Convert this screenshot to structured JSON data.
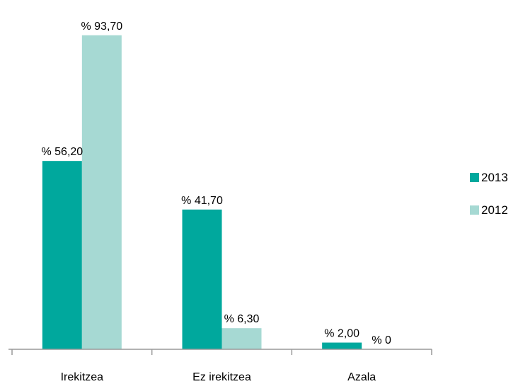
{
  "chart_data": {
    "type": "bar",
    "categories": [
      "Irekitzea",
      "Ez irekitzea",
      "Azala"
    ],
    "series": [
      {
        "name": "2013",
        "values": [
          56.2,
          41.7,
          2.0
        ],
        "labels": [
          "% 56,20",
          "% 41,70",
          "% 2,00"
        ],
        "color": "#00a89d"
      },
      {
        "name": "2012",
        "values": [
          93.7,
          6.3,
          0
        ],
        "labels": [
          "% 93,70",
          "% 6,30",
          "% 0"
        ],
        "color": "#a6d9d3"
      }
    ],
    "ylim": [
      0,
      100
    ],
    "grid": false,
    "legend_position": "right"
  }
}
